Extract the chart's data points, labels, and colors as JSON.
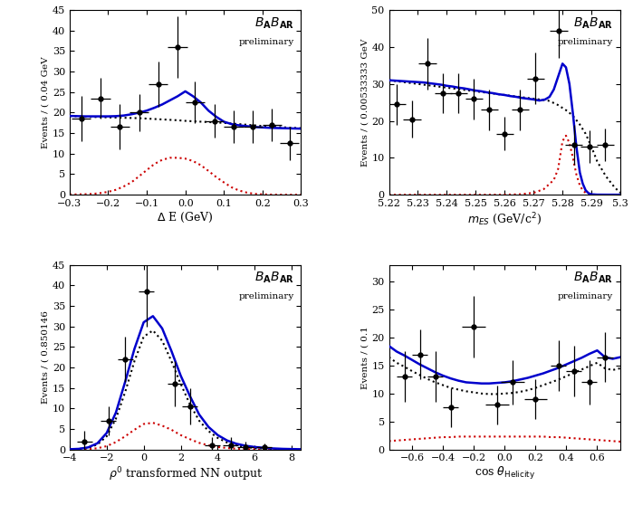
{
  "panel1": {
    "xlabel": "Δ E (GeV)",
    "ylabel": "Events / ( 0.04 GeV",
    "xlim": [
      -0.3,
      0.3
    ],
    "ylim": [
      0,
      45
    ],
    "yticks": [
      0,
      5,
      10,
      15,
      20,
      25,
      30,
      35,
      40,
      45
    ],
    "xticks": [
      -0.3,
      -0.2,
      -0.1,
      0.0,
      0.1,
      0.2,
      0.3
    ],
    "data_x": [
      -0.27,
      -0.22,
      -0.17,
      -0.12,
      -0.07,
      -0.02,
      0.025,
      0.075,
      0.125,
      0.175,
      0.225,
      0.27
    ],
    "data_y": [
      18.5,
      23.5,
      16.5,
      20.0,
      27.0,
      36.0,
      22.5,
      18.0,
      16.5,
      16.5,
      17.0,
      12.5
    ],
    "data_xerr": [
      0.025,
      0.025,
      0.025,
      0.025,
      0.025,
      0.025,
      0.025,
      0.025,
      0.025,
      0.025,
      0.025,
      0.025
    ],
    "data_yerr": [
      5.5,
      5.0,
      5.5,
      4.5,
      5.5,
      7.5,
      5.0,
      4.0,
      4.0,
      4.0,
      4.0,
      4.0
    ],
    "blue_x": [
      -0.3,
      -0.28,
      -0.26,
      -0.24,
      -0.22,
      -0.2,
      -0.18,
      -0.16,
      -0.14,
      -0.12,
      -0.1,
      -0.08,
      -0.06,
      -0.04,
      -0.02,
      0.0,
      0.02,
      0.04,
      0.06,
      0.08,
      0.1,
      0.12,
      0.14,
      0.16,
      0.18,
      0.2,
      0.22,
      0.24,
      0.26,
      0.28,
      0.3
    ],
    "blue_y": [
      19.2,
      19.15,
      19.1,
      19.1,
      19.1,
      19.1,
      19.15,
      19.3,
      19.6,
      20.0,
      20.5,
      21.2,
      22.0,
      23.0,
      24.0,
      25.2,
      24.0,
      22.5,
      20.5,
      19.0,
      17.8,
      17.2,
      16.9,
      16.7,
      16.5,
      16.4,
      16.3,
      16.25,
      16.2,
      16.15,
      16.1
    ],
    "black_y": [
      19.2,
      19.1,
      19.0,
      18.95,
      18.9,
      18.85,
      18.8,
      18.75,
      18.7,
      18.65,
      18.55,
      18.45,
      18.35,
      18.25,
      18.15,
      18.0,
      17.9,
      17.8,
      17.7,
      17.6,
      17.5,
      17.35,
      17.2,
      17.05,
      16.9,
      16.75,
      16.6,
      16.5,
      16.4,
      16.3,
      16.2
    ],
    "red_y": [
      0.05,
      0.08,
      0.12,
      0.2,
      0.4,
      0.7,
      1.2,
      2.0,
      3.0,
      4.5,
      6.0,
      7.5,
      8.5,
      9.0,
      9.0,
      8.8,
      8.2,
      7.2,
      5.8,
      4.3,
      3.0,
      1.8,
      1.0,
      0.5,
      0.2,
      0.1,
      0.04,
      0.02,
      0.01,
      0.005,
      0.002
    ]
  },
  "panel2": {
    "xlabel": "m_{ES} (GeV/c^{2})",
    "ylabel": "Events / ( 0.00533333 GeV",
    "xlim": [
      5.22,
      5.3
    ],
    "ylim": [
      0,
      50
    ],
    "yticks": [
      0,
      10,
      20,
      30,
      40,
      50
    ],
    "xticks": [
      5.22,
      5.23,
      5.24,
      5.25,
      5.26,
      5.27,
      5.28,
      5.29,
      5.3
    ],
    "xticklabels": [
      "5.22",
      "5.23",
      "5.24",
      "5.25",
      "5.26",
      "5.27",
      "5.28",
      "5.29",
      "5.3"
    ],
    "data_x": [
      5.2227,
      5.228,
      5.2333,
      5.2387,
      5.244,
      5.2493,
      5.2547,
      5.26,
      5.2653,
      5.2707,
      5.2787,
      5.284,
      5.2893,
      5.2947
    ],
    "data_y": [
      24.5,
      20.5,
      35.5,
      27.5,
      27.5,
      26.0,
      23.0,
      16.5,
      23.0,
      31.5,
      44.5,
      13.5,
      13.0,
      13.5
    ],
    "data_xerr": [
      0.003,
      0.003,
      0.003,
      0.003,
      0.003,
      0.003,
      0.003,
      0.003,
      0.003,
      0.003,
      0.003,
      0.003,
      0.003,
      0.003
    ],
    "data_yerr": [
      5.5,
      5.0,
      7.0,
      5.5,
      5.5,
      5.5,
      5.5,
      4.5,
      5.5,
      7.0,
      7.5,
      5.5,
      4.5,
      4.5
    ],
    "blue_x": [
      5.22,
      5.222,
      5.224,
      5.226,
      5.228,
      5.23,
      5.232,
      5.234,
      5.236,
      5.238,
      5.24,
      5.242,
      5.244,
      5.246,
      5.248,
      5.25,
      5.252,
      5.254,
      5.256,
      5.258,
      5.26,
      5.262,
      5.264,
      5.266,
      5.268,
      5.27,
      5.272,
      5.274,
      5.2755,
      5.277,
      5.2785,
      5.28,
      5.2812,
      5.2824,
      5.2836,
      5.2848,
      5.286,
      5.287,
      5.288,
      5.289,
      5.29,
      5.292,
      5.295,
      5.298,
      5.3
    ],
    "blue_y": [
      31.0,
      30.9,
      30.8,
      30.7,
      30.6,
      30.5,
      30.4,
      30.2,
      30.0,
      29.8,
      29.5,
      29.3,
      29.0,
      28.8,
      28.5,
      28.2,
      28.0,
      27.7,
      27.5,
      27.2,
      27.0,
      26.7,
      26.5,
      26.2,
      26.0,
      25.8,
      25.5,
      25.8,
      26.5,
      28.5,
      32.0,
      35.5,
      34.5,
      30.0,
      22.0,
      13.0,
      6.0,
      3.0,
      1.2,
      0.4,
      0.1,
      0.02,
      0.005,
      0.001,
      0.0
    ],
    "black_x": [
      5.22,
      5.225,
      5.23,
      5.235,
      5.24,
      5.245,
      5.25,
      5.255,
      5.26,
      5.265,
      5.27,
      5.275,
      5.278,
      5.28,
      5.282,
      5.284,
      5.286,
      5.288,
      5.29,
      5.292,
      5.295,
      5.298,
      5.3
    ],
    "black_y": [
      31.0,
      30.5,
      30.0,
      29.5,
      29.0,
      28.5,
      28.0,
      27.5,
      27.0,
      26.5,
      26.0,
      25.5,
      24.5,
      23.5,
      22.5,
      21.0,
      19.0,
      16.5,
      13.0,
      9.0,
      5.0,
      2.0,
      0.5
    ],
    "red_x": [
      5.22,
      5.225,
      5.23,
      5.235,
      5.24,
      5.245,
      5.25,
      5.255,
      5.26,
      5.265,
      5.27,
      5.2735,
      5.277,
      5.2785,
      5.28,
      5.2812,
      5.2824,
      5.2836,
      5.2848,
      5.286,
      5.287,
      5.288,
      5.289,
      5.29,
      5.292,
      5.295,
      5.298,
      5.3
    ],
    "red_y": [
      0.0,
      0.0,
      0.0,
      0.0,
      0.0,
      0.0,
      0.0,
      0.0,
      0.02,
      0.1,
      0.5,
      1.5,
      4.0,
      7.0,
      14.5,
      16.0,
      14.0,
      10.0,
      5.5,
      2.5,
      1.2,
      0.5,
      0.2,
      0.05,
      0.01,
      0.002,
      0.0,
      0.0
    ]
  },
  "panel3": {
    "xlabel": "ρ^{0} transformed NN output",
    "ylabel": "Events / ( 0.850146",
    "xlim": [
      -4,
      8.5
    ],
    "ylim": [
      0,
      45
    ],
    "yticks": [
      0,
      5,
      10,
      15,
      20,
      25,
      30,
      35,
      40,
      45
    ],
    "xticks": [
      -4,
      -2,
      0,
      2,
      4,
      6,
      8
    ],
    "data_x": [
      -3.2,
      -1.9,
      -1.0,
      0.15,
      1.7,
      2.5,
      3.7,
      4.7,
      5.5,
      6.5
    ],
    "data_y": [
      2.0,
      7.0,
      22.0,
      38.5,
      16.0,
      10.5,
      1.0,
      1.0,
      0.5,
      0.5
    ],
    "data_xerr": [
      0.42,
      0.42,
      0.42,
      0.42,
      0.42,
      0.42,
      0.42,
      0.42,
      0.42,
      0.42
    ],
    "data_yerr": [
      2.5,
      3.5,
      5.5,
      8.5,
      5.5,
      4.5,
      2.0,
      2.0,
      1.5,
      1.0
    ],
    "blue_x": [
      -4.0,
      -3.5,
      -3.0,
      -2.5,
      -2.0,
      -1.5,
      -1.0,
      -0.5,
      0.0,
      0.5,
      1.0,
      1.5,
      2.0,
      2.5,
      3.0,
      3.5,
      4.0,
      4.5,
      5.0,
      5.5,
      6.0,
      6.5,
      7.0,
      7.5,
      8.0,
      8.5
    ],
    "blue_y": [
      0.05,
      0.15,
      0.5,
      1.5,
      4.0,
      9.0,
      16.5,
      24.5,
      31.0,
      32.5,
      29.5,
      24.0,
      18.0,
      13.0,
      8.5,
      5.5,
      3.5,
      2.2,
      1.4,
      0.9,
      0.6,
      0.4,
      0.25,
      0.15,
      0.1,
      0.05
    ],
    "black_y": [
      0.05,
      0.12,
      0.4,
      1.2,
      3.2,
      7.5,
      14.0,
      21.5,
      27.5,
      29.0,
      26.5,
      21.5,
      16.0,
      11.0,
      7.0,
      4.5,
      2.8,
      1.7,
      1.0,
      0.6,
      0.35,
      0.2,
      0.12,
      0.07,
      0.04,
      0.02
    ],
    "red_y": [
      0.0,
      0.02,
      0.08,
      0.3,
      0.8,
      1.8,
      3.2,
      4.8,
      6.2,
      6.5,
      5.8,
      4.8,
      3.5,
      2.5,
      1.6,
      1.0,
      0.6,
      0.35,
      0.2,
      0.1,
      0.05,
      0.02,
      0.01,
      0.005,
      0.002,
      0.001
    ]
  },
  "panel4": {
    "xlabel": "cos θ_{Helicity}",
    "ylabel": "Events / ( 0.1",
    "xlim": [
      -0.75,
      0.75
    ],
    "ylim": [
      0,
      33
    ],
    "yticks": [
      0,
      5,
      10,
      15,
      20,
      25,
      30
    ],
    "xticks": [
      -0.6,
      -0.4,
      -0.2,
      0.0,
      0.2,
      0.4,
      0.6
    ],
    "data_x": [
      -0.65,
      -0.55,
      -0.45,
      -0.35,
      -0.2,
      -0.05,
      0.05,
      0.2,
      0.35,
      0.45,
      0.55,
      0.65
    ],
    "data_y": [
      13.0,
      17.0,
      13.0,
      7.5,
      22.0,
      8.0,
      12.0,
      9.0,
      15.0,
      14.0,
      12.0,
      16.5
    ],
    "data_xerr": [
      0.05,
      0.05,
      0.05,
      0.05,
      0.075,
      0.075,
      0.075,
      0.075,
      0.05,
      0.05,
      0.05,
      0.05
    ],
    "data_yerr": [
      4.5,
      4.5,
      4.5,
      3.5,
      5.5,
      3.5,
      4.0,
      3.5,
      4.5,
      4.5,
      4.0,
      4.5
    ],
    "blue_x": [
      -0.75,
      -0.7,
      -0.65,
      -0.6,
      -0.55,
      -0.5,
      -0.45,
      -0.4,
      -0.35,
      -0.3,
      -0.25,
      -0.2,
      -0.15,
      -0.1,
      -0.05,
      0.0,
      0.05,
      0.1,
      0.15,
      0.2,
      0.25,
      0.3,
      0.35,
      0.4,
      0.45,
      0.5,
      0.55,
      0.6,
      0.65,
      0.7,
      0.75
    ],
    "blue_y": [
      18.5,
      17.5,
      16.8,
      16.0,
      15.2,
      14.5,
      13.8,
      13.2,
      12.7,
      12.3,
      12.0,
      11.9,
      11.8,
      11.8,
      11.9,
      12.0,
      12.2,
      12.5,
      12.8,
      13.2,
      13.6,
      14.1,
      14.6,
      15.2,
      15.8,
      16.4,
      17.1,
      17.7,
      16.5,
      16.2,
      16.5
    ],
    "black_y": [
      16.5,
      15.5,
      14.8,
      14.0,
      13.3,
      12.6,
      12.0,
      11.5,
      11.0,
      10.7,
      10.4,
      10.2,
      10.0,
      9.9,
      9.9,
      10.0,
      10.1,
      10.3,
      10.6,
      11.0,
      11.5,
      12.0,
      12.5,
      13.1,
      13.7,
      14.3,
      14.9,
      15.5,
      14.5,
      14.2,
      14.5
    ],
    "red_y": [
      1.5,
      1.6,
      1.7,
      1.8,
      1.9,
      2.0,
      2.1,
      2.2,
      2.2,
      2.3,
      2.3,
      2.3,
      2.3,
      2.3,
      2.3,
      2.3,
      2.3,
      2.3,
      2.3,
      2.3,
      2.3,
      2.2,
      2.2,
      2.1,
      2.0,
      1.9,
      1.8,
      1.7,
      1.6,
      1.5,
      1.4
    ]
  },
  "blue_color": "#0000CC",
  "red_color": "#CC0000"
}
